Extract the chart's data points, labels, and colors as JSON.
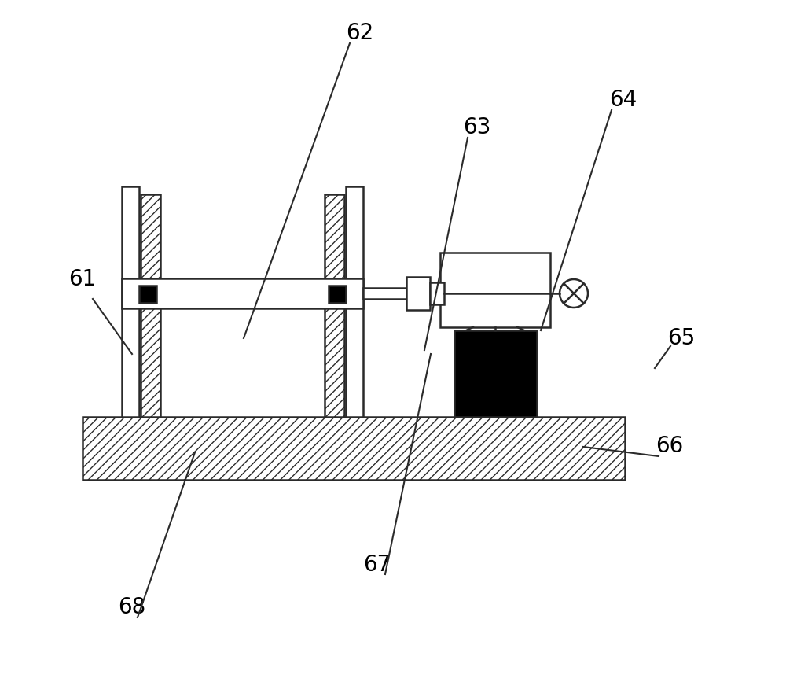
{
  "bg_color": "#ffffff",
  "line_color": "#2a2a2a",
  "hatch_color": "#2a2a2a",
  "figsize": [
    10.0,
    8.67
  ],
  "dpi": 100,
  "label_fontsize": 20
}
